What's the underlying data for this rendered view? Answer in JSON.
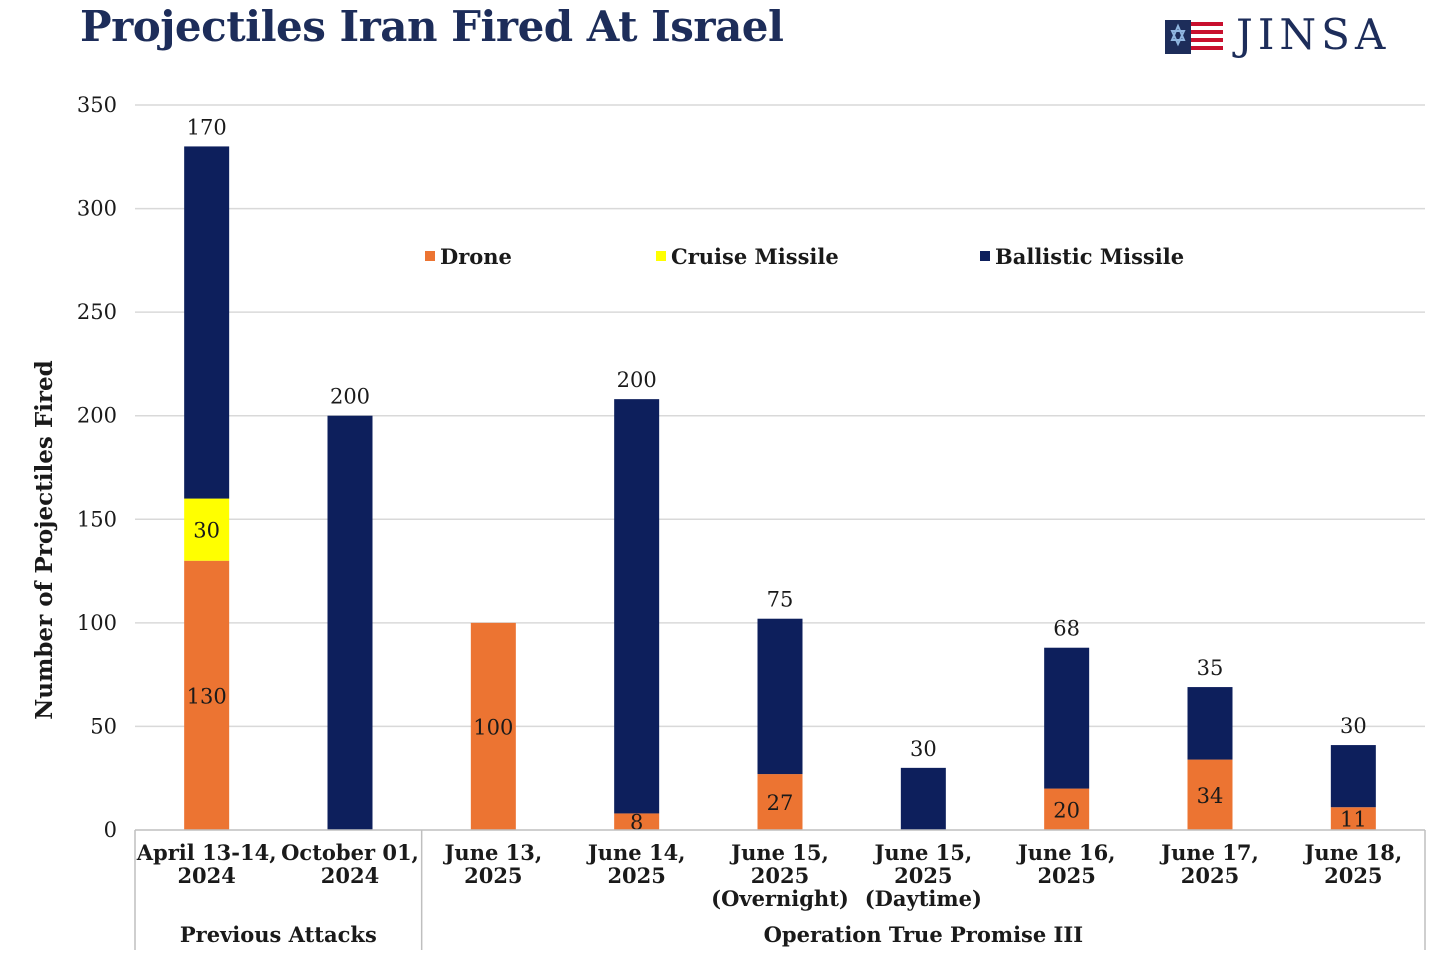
{
  "title": "Projectiles Iran Fired At Israel",
  "logo": {
    "text": "JINSA"
  },
  "chart_data": {
    "type": "bar",
    "stacked": true,
    "ylabel": "Number of Projectiles Fired",
    "ylim": [
      0,
      350
    ],
    "yticks": [
      0,
      50,
      100,
      150,
      200,
      250,
      300,
      350
    ],
    "grid": true,
    "legend_position": "top-center",
    "categories": [
      [
        "April 13-14,",
        "2024"
      ],
      [
        "October 01,",
        "2024"
      ],
      [
        "June 13,",
        "2025"
      ],
      [
        "June 14,",
        "2025"
      ],
      [
        "June 15,",
        "2025",
        "(Overnight)"
      ],
      [
        "June 15,",
        "2025",
        "(Daytime)"
      ],
      [
        "June 16,",
        "2025"
      ],
      [
        "June 17,",
        "2025"
      ],
      [
        "June 18,",
        "2025"
      ]
    ],
    "groups": [
      {
        "label": "Previous Attacks",
        "start": 0,
        "end": 1
      },
      {
        "label": "Operation True Promise III",
        "start": 2,
        "end": 8
      }
    ],
    "series": [
      {
        "name": "Drone",
        "color": "#ec7432",
        "values": [
          130,
          0,
          100,
          8,
          27,
          0,
          20,
          34,
          11
        ],
        "labels": [
          "130",
          "",
          "100",
          "8",
          "27",
          "",
          "20",
          "34",
          "11"
        ]
      },
      {
        "name": "Cruise Missile",
        "color": "#ffff00",
        "values": [
          30,
          0,
          0,
          0,
          0,
          0,
          0,
          0,
          0
        ],
        "labels": [
          "30",
          "",
          "",
          "",
          "",
          "",
          "",
          "",
          ""
        ]
      },
      {
        "name": "Ballistic Missile",
        "color": "#0d1f5c",
        "values": [
          170,
          200,
          0,
          200,
          75,
          30,
          68,
          35,
          30
        ],
        "labels": [
          "170",
          "200",
          "",
          "200",
          "75",
          "30",
          "68",
          "35",
          "30"
        ]
      }
    ]
  }
}
